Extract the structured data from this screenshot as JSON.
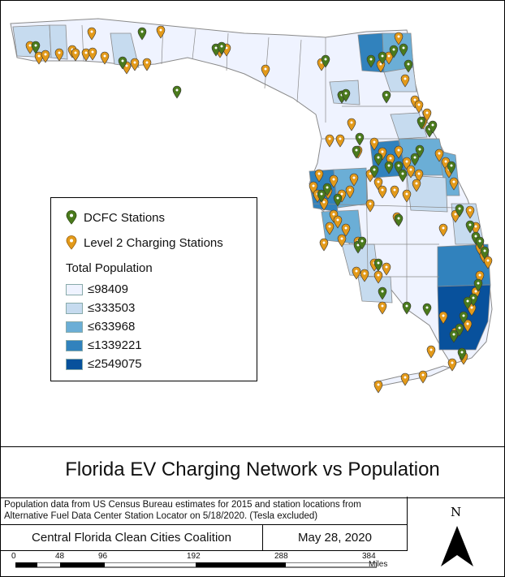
{
  "legend": {
    "dcfc_label": "DCFC Stations",
    "level2_label": "Level 2 Charging Stations",
    "population_title": "Total Population",
    "classes": [
      {
        "label": "≤98409",
        "color": "#eff3ff"
      },
      {
        "label": "≤333503",
        "color": "#c6dbef"
      },
      {
        "label": "≤633968",
        "color": "#6baed6"
      },
      {
        "label": "≤1339221",
        "color": "#3182bd"
      },
      {
        "label": "≤2549075",
        "color": "#08519c"
      }
    ]
  },
  "colors": {
    "dcfc": "#4a7a1c",
    "level2": "#e39a1a",
    "water": "#ffffff",
    "county_border": "#8a8a8a"
  },
  "title": "Florida EV Charging Network vs Population",
  "source_line1": "Population data from US Census Bureau estimates for 2015 and station locations from",
  "source_line2": "Alternative Fuel Data Center Station Locator on 5/18/2020. (Tesla excluded)",
  "organization": "Central Florida Clean Cities Coalition",
  "date": "May 28, 2020",
  "north_arrow": {
    "label": "N",
    "icon": "north-arrow-icon"
  },
  "scale_bar": {
    "ticks": [
      "0",
      "48",
      "96",
      "192",
      "288",
      "384"
    ],
    "unit": "Miles"
  }
}
